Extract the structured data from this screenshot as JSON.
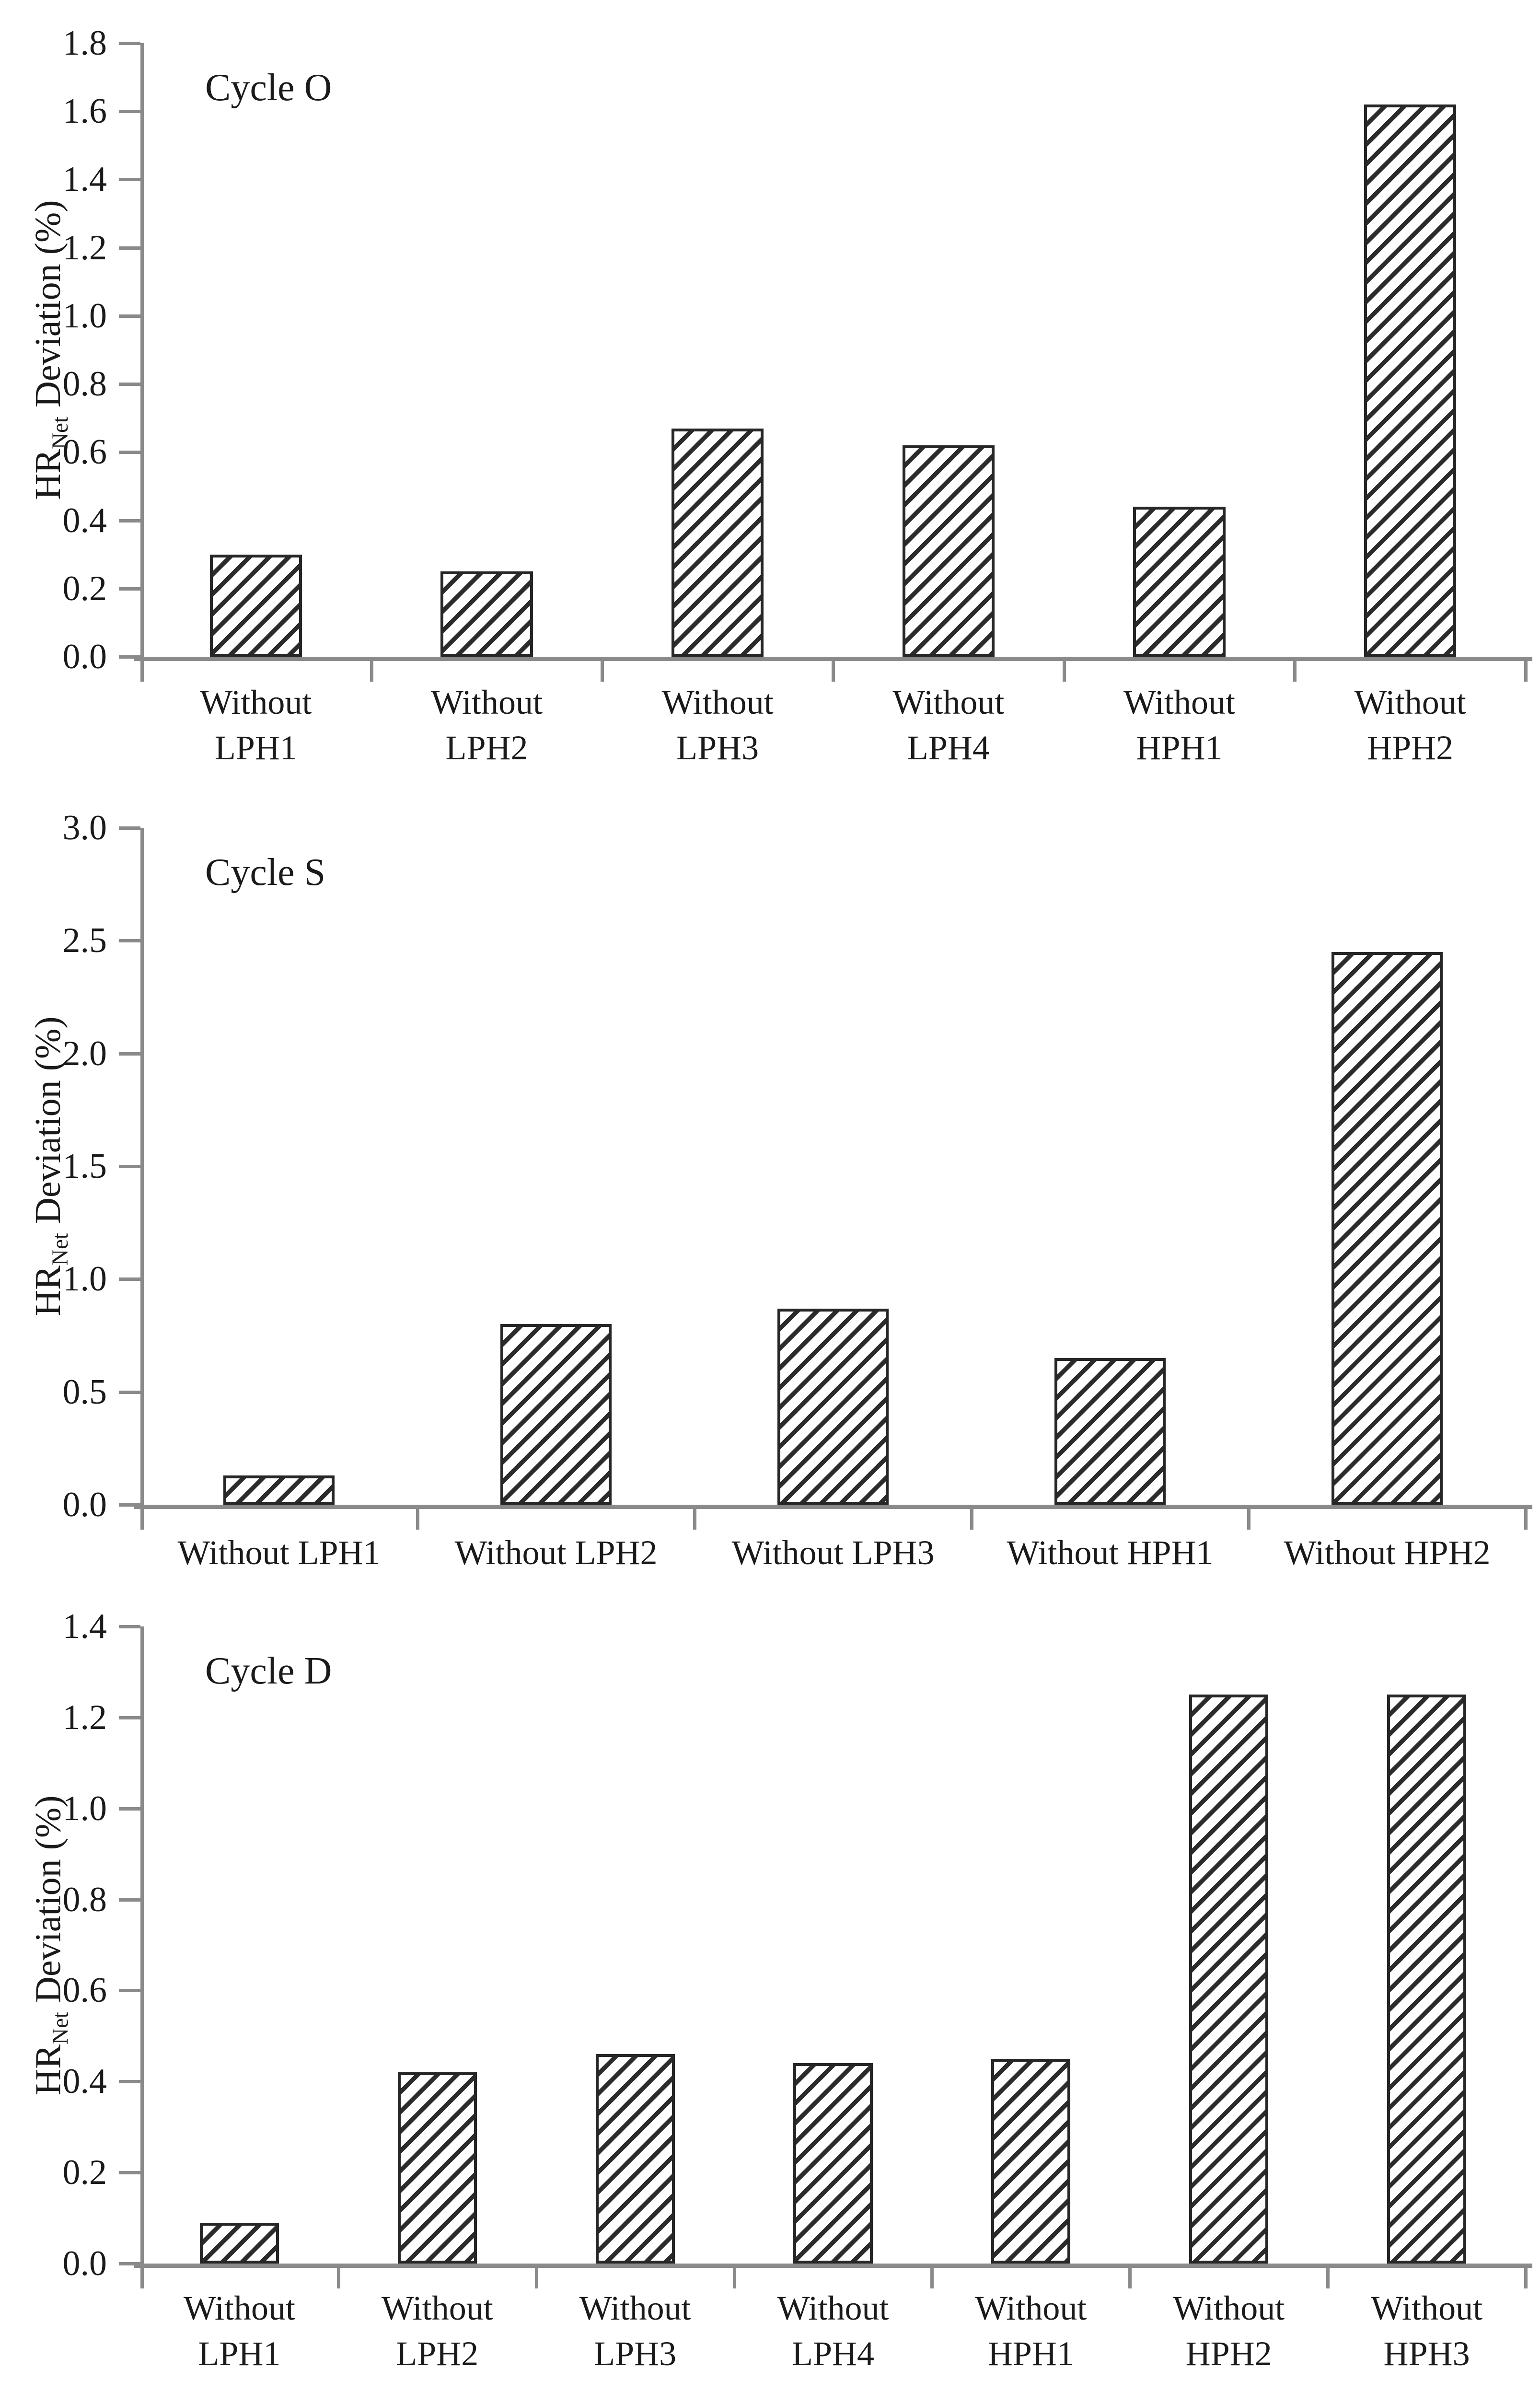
{
  "page": {
    "background": "#ffffff"
  },
  "colors": {
    "text": "#1a1a1a",
    "axis": "#8a8a8a",
    "bar_border": "#262626",
    "bar_fill": "#ffffff",
    "hatch_line": "#2b2b2b"
  },
  "y_axis_title": {
    "prefix": "HR",
    "subscript": "Net",
    "suffix": " Deviation (%)"
  },
  "chart_data": [
    {
      "type": "bar",
      "title": "Cycle O",
      "ylabel": "HR_Net Deviation (%)",
      "ylim": [
        0,
        1.8
      ],
      "ytick_step": 0.2,
      "yticks": [
        "1.8",
        "1.6",
        "1.4",
        "1.2",
        "1.0",
        "0.8",
        "0.6",
        "0.4",
        "0.2",
        "0.0"
      ],
      "categories": [
        "Without LPH1",
        "Without LPH2",
        "Without LPH3",
        "Without LPH4",
        "Without HPH1",
        "Without HPH2"
      ],
      "category_label_lines": [
        [
          "Without",
          "LPH1"
        ],
        [
          "Without",
          "LPH2"
        ],
        [
          "Without",
          "LPH3"
        ],
        [
          "Without",
          "LPH4"
        ],
        [
          "Without",
          "HPH1"
        ],
        [
          "Without",
          "HPH2"
        ]
      ],
      "values": [
        0.3,
        0.25,
        0.67,
        0.62,
        0.44,
        1.62
      ],
      "grid": false,
      "legend": null,
      "hatch": "diagonal-up",
      "xlabel": ""
    },
    {
      "type": "bar",
      "title": "Cycle S",
      "ylabel": "HR_Net Deviation (%)",
      "ylim": [
        0,
        3.0
      ],
      "ytick_step": 0.5,
      "yticks": [
        "3.0",
        "2.5",
        "2.0",
        "1.5",
        "1.0",
        "0.5",
        "0.0"
      ],
      "categories": [
        "Without LPH1",
        "Without LPH2",
        "Without LPH3",
        "Without HPH1",
        "Without HPH2"
      ],
      "category_label_lines": [
        [
          "Without LPH1"
        ],
        [
          "Without LPH2"
        ],
        [
          "Without LPH3"
        ],
        [
          "Without HPH1"
        ],
        [
          "Without HPH2"
        ]
      ],
      "values": [
        0.13,
        0.8,
        0.87,
        0.65,
        2.45
      ],
      "grid": false,
      "legend": null,
      "hatch": "diagonal-up",
      "xlabel": ""
    },
    {
      "type": "bar",
      "title": "Cycle D",
      "ylabel": "HR_Net Deviation (%)",
      "ylim": [
        0,
        1.4
      ],
      "ytick_step": 0.2,
      "yticks": [
        "1.4",
        "1.2",
        "1.0",
        "0.8",
        "0.6",
        "0.4",
        "0.2",
        "0.0"
      ],
      "categories": [
        "Without LPH1",
        "Without LPH2",
        "Without LPH3",
        "Without LPH4",
        "Without HPH1",
        "Without HPH2",
        "Without HPH3"
      ],
      "category_label_lines": [
        [
          "Without",
          "LPH1"
        ],
        [
          "Without",
          "LPH2"
        ],
        [
          "Without",
          "LPH3"
        ],
        [
          "Without",
          "LPH4"
        ],
        [
          "Without",
          "HPH1"
        ],
        [
          "Without",
          "HPH2"
        ],
        [
          "Without",
          "HPH3"
        ]
      ],
      "values": [
        0.09,
        0.42,
        0.46,
        0.44,
        0.45,
        1.25,
        1.25
      ],
      "grid": false,
      "legend": null,
      "hatch": "diagonal-up",
      "xlabel": ""
    }
  ]
}
